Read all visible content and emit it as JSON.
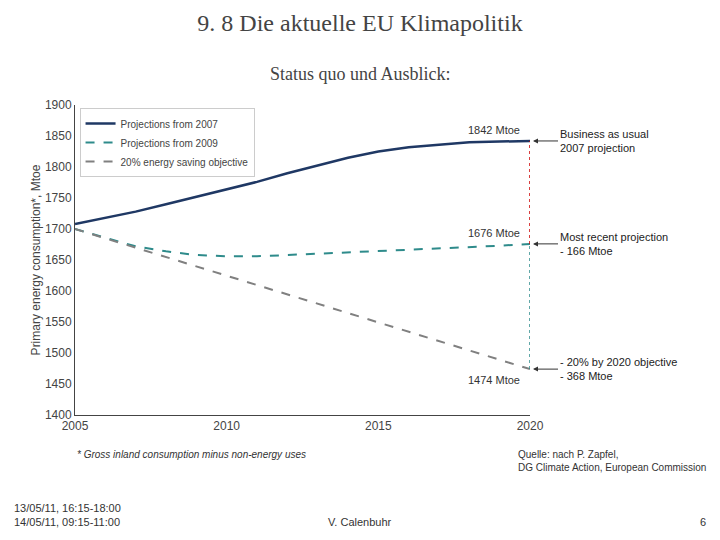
{
  "chart_data": {
    "type": "line",
    "title": "9. 8 Die aktuelle EU Klimapolitik",
    "subtitle": "Status quo und Ausblick:",
    "ylabel": "Primary energy consumption*, Mtoe",
    "xlim": [
      2005,
      2020
    ],
    "ylim": [
      1400,
      1900
    ],
    "xticks": [
      2005,
      2010,
      2015,
      2020
    ],
    "yticks": [
      1400,
      1450,
      1500,
      1550,
      1600,
      1650,
      1700,
      1750,
      1800,
      1850,
      1900
    ],
    "grid": false,
    "legend": "upper left",
    "series": [
      {
        "name": "Projections from 2007",
        "color": "#1F3864",
        "line_style": "solid",
        "x": [
          2005,
          2006,
          2007,
          2008,
          2009,
          2010,
          2011,
          2012,
          2013,
          2014,
          2015,
          2016,
          2017,
          2018,
          2019,
          2020
        ],
        "values": [
          1708,
          1718,
          1728,
          1740,
          1752,
          1764,
          1776,
          1790,
          1803,
          1815,
          1825,
          1832,
          1836,
          1840,
          1841,
          1842
        ]
      },
      {
        "name": "Projections from 2009",
        "color": "#2E8B8B",
        "line_style": "dashed",
        "x": [
          2005,
          2006,
          2007,
          2008,
          2009,
          2010,
          2011,
          2012,
          2013,
          2014,
          2015,
          2016,
          2017,
          2018,
          2019,
          2020
        ],
        "values": [
          1700,
          1686,
          1672,
          1664,
          1658,
          1656,
          1656,
          1658,
          1660,
          1662,
          1664,
          1666,
          1668,
          1670,
          1673,
          1676
        ]
      },
      {
        "name": "20% energy saving objective",
        "color": "#808080",
        "line_style": "dashed",
        "x": [
          2005,
          2020
        ],
        "values": [
          1700,
          1474
        ]
      }
    ],
    "segments": [
      {
        "x": 2020,
        "y": [
          1676,
          1842
        ],
        "color": "#CC0000",
        "line_style": "dotted"
      },
      {
        "x": 2020,
        "y": [
          1474,
          1676
        ],
        "color": "#2E8B8B",
        "line_style": "dotted"
      }
    ],
    "point_labels": [
      {
        "x": 2020,
        "y": 1842,
        "label": "1842 Mtoe"
      },
      {
        "x": 2020,
        "y": 1676,
        "label": "1676 Mtoe"
      },
      {
        "x": 2020,
        "y": 1474,
        "label": "1474 Mtoe"
      }
    ],
    "annotations": [
      {
        "x": 2020,
        "y": 1842,
        "text": "Business as usual\n2007 projection"
      },
      {
        "x": 2020,
        "y": 1676,
        "text": "Most recent projection\n- 166 Mtoe"
      },
      {
        "x": 2020,
        "y": 1474,
        "text": "- 20% by 2020 objective\n- 368 Mtoe"
      }
    ],
    "footnote": "* Gross inland consumption minus non-energy uses",
    "source": "Quelle: nach P. Zapfel,\nDG Climate Action, European Commission",
    "footer": [
      "13/05/11, 16:15-18:00\n14/05/11, 09:15-11:00",
      "V. Calenbuhr",
      "6"
    ]
  }
}
